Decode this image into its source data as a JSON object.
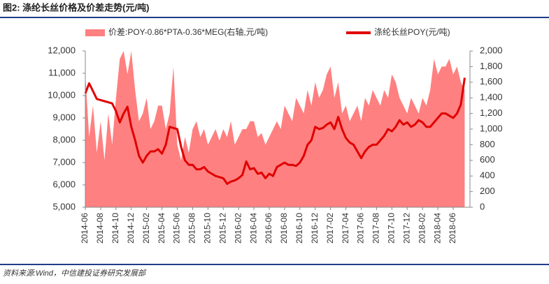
{
  "title": "图2: 涤纶长丝价格及价差走势(元/吨)",
  "source": "资料来源:Wind，中信建投证券研究发展部",
  "chart_data": {
    "type": "combo",
    "categories": [
      "2014-06",
      null,
      null,
      null,
      "2014-08",
      null,
      null,
      null,
      "2014-10",
      null,
      null,
      null,
      "2014-12",
      null,
      null,
      null,
      "2015-02",
      null,
      null,
      null,
      "2015-04",
      null,
      null,
      null,
      "2015-06",
      null,
      null,
      null,
      "2015-08",
      null,
      null,
      null,
      "2015-10",
      null,
      null,
      null,
      "2015-12",
      null,
      null,
      null,
      "2016-02",
      null,
      null,
      null,
      "2016-04",
      null,
      null,
      null,
      "2016-06",
      null,
      null,
      null,
      "2016-08",
      null,
      null,
      null,
      "2016-10",
      null,
      null,
      null,
      "2016-12",
      null,
      null,
      null,
      "2017-02",
      null,
      null,
      null,
      "2017-04",
      null,
      null,
      null,
      "2017-06",
      null,
      null,
      null,
      "2017-08",
      null,
      null,
      null,
      "2017-10",
      null,
      null,
      null,
      "2017-12",
      null,
      null,
      null,
      "2018-02",
      null,
      null,
      null,
      "2018-04",
      null,
      null,
      null,
      "2018-06",
      null,
      null,
      null
    ],
    "series": [
      {
        "name": "价差:POY-0.86*PTA-0.36*MEG(右轴,元/吨)",
        "type": "area",
        "axis": "y2",
        "color": "#ff8080",
        "values": [
          1700,
          900,
          1300,
          700,
          1100,
          600,
          1200,
          800,
          1400,
          1900,
          2000,
          1700,
          2000,
          1500,
          1100,
          1200,
          1400,
          1000,
          1100,
          1300,
          1300,
          1000,
          1200,
          1800,
          800,
          600,
          900,
          700,
          1000,
          1100,
          900,
          1000,
          800,
          900,
          1000,
          850,
          1000,
          900,
          1100,
          800,
          900,
          1000,
          1000,
          1100,
          1100,
          900,
          950,
          800,
          900,
          1000,
          1100,
          1000,
          1300,
          1200,
          1100,
          1400,
          1300,
          1200,
          1500,
          1300,
          1600,
          1400,
          1500,
          1700,
          1800,
          1400,
          1600,
          1200,
          1300,
          1100,
          1200,
          1300,
          1100,
          1400,
          1300,
          1500,
          1400,
          1300,
          1500,
          1400,
          1700,
          1600,
          1400,
          1300,
          1200,
          1400,
          1300,
          1200,
          1400,
          1300,
          1500,
          1900,
          1700,
          1800,
          1800,
          1900,
          1700,
          1800,
          1600,
          1500
        ]
      },
      {
        "name": "涤纶长丝POY(元/吨)",
        "type": "line",
        "axis": "y",
        "color": "#e00000",
        "values": [
          10100,
          10550,
          10200,
          9850,
          9800,
          9750,
          9700,
          9650,
          9300,
          8800,
          9200,
          9500,
          8600,
          8000,
          7300,
          7000,
          7300,
          7500,
          7500,
          7600,
          7400,
          7800,
          8600,
          8550,
          8500,
          7700,
          7100,
          6900,
          6900,
          6700,
          6700,
          6800,
          6600,
          6500,
          6400,
          6350,
          6300,
          6050,
          6150,
          6200,
          6300,
          6450,
          7050,
          6700,
          6750,
          6500,
          6550,
          6300,
          6500,
          6400,
          6800,
          6900,
          7000,
          6900,
          6900,
          6850,
          7000,
          7300,
          7800,
          8000,
          8600,
          8500,
          8550,
          8700,
          8800,
          8500,
          9050,
          8500,
          8100,
          7900,
          7800,
          7500,
          7200,
          7500,
          7700,
          7800,
          7800,
          8000,
          8200,
          8500,
          8400,
          8600,
          8900,
          8700,
          8800,
          8600,
          8700,
          8900,
          8800,
          8600,
          8600,
          8800,
          9000,
          9200,
          9200,
          9100,
          9000,
          9200,
          9600,
          10800
        ]
      }
    ],
    "ylim": [
      5000,
      12000
    ],
    "yticks": [
      {
        "value": 5000,
        "label": "5,000"
      },
      {
        "value": 6000,
        "label": "6,000"
      },
      {
        "value": 7000,
        "label": "7,000"
      },
      {
        "value": 8000,
        "label": "8,000"
      },
      {
        "value": 9000,
        "label": "9,000"
      },
      {
        "value": 10000,
        "label": "10,000"
      },
      {
        "value": 11000,
        "label": "11,000"
      },
      {
        "value": 12000,
        "label": "12,000"
      }
    ],
    "y2lim": [
      0,
      2000
    ],
    "y2ticks": [
      0,
      200,
      400,
      600,
      800,
      {
        "value": 1000,
        "label": "1,000"
      },
      {
        "value": 1200,
        "label": "1,200"
      },
      {
        "value": 1400,
        "label": "1,400"
      },
      {
        "value": 1600,
        "label": "1,600"
      },
      {
        "value": 1800,
        "label": "1,800"
      },
      {
        "value": 2000,
        "label": "2,000"
      }
    ]
  }
}
